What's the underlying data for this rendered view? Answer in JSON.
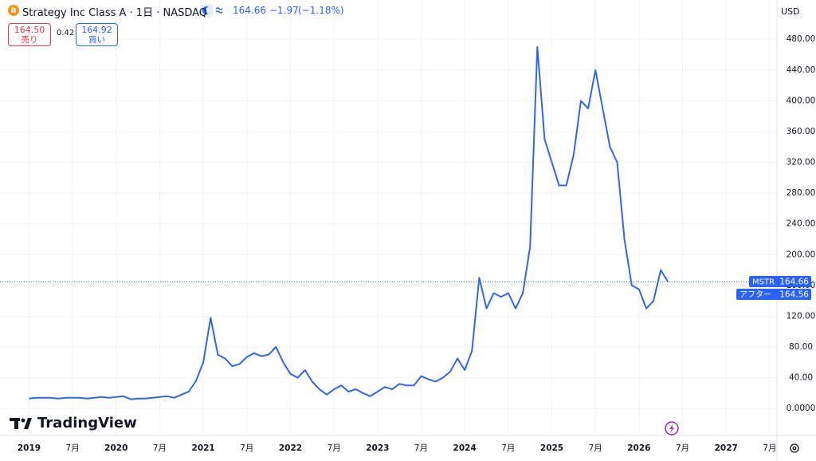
{
  "chart_data": {
    "type": "line",
    "logo_letter": "B",
    "title": "Strategy Inc Class A · 1日 · NASDAQ",
    "quote": {
      "price": "164.66",
      "change": "−1.97",
      "change_pct": "(−1.18%)"
    },
    "sell": {
      "price": "164.50",
      "label": "売り"
    },
    "spread": "0.42",
    "buy": {
      "price": "164.92",
      "label": "買い"
    },
    "currency": "USD",
    "brand": "TradingView",
    "color": "#3366e6",
    "grid": true,
    "x": [
      "2019-01",
      "2019-02",
      "2019-03",
      "2019-04",
      "2019-05",
      "2019-06",
      "2019-07",
      "2019-08",
      "2019-09",
      "2019-10",
      "2019-11",
      "2019-12",
      "2020-01",
      "2020-02",
      "2020-03",
      "2020-04",
      "2020-05",
      "2020-06",
      "2020-07",
      "2020-08",
      "2020-09",
      "2020-10",
      "2020-11",
      "2020-12",
      "2021-01",
      "2021-02",
      "2021-03",
      "2021-04",
      "2021-05",
      "2021-06",
      "2021-07",
      "2021-08",
      "2021-09",
      "2021-10",
      "2021-11",
      "2021-12",
      "2022-01",
      "2022-02",
      "2022-03",
      "2022-04",
      "2022-05",
      "2022-06",
      "2022-07",
      "2022-08",
      "2022-09",
      "2022-10",
      "2022-11",
      "2022-12",
      "2023-01",
      "2023-02",
      "2023-03",
      "2023-04",
      "2023-05",
      "2023-06",
      "2023-07",
      "2023-08",
      "2023-09",
      "2023-10",
      "2023-11",
      "2023-12",
      "2024-01",
      "2024-02",
      "2024-03",
      "2024-04",
      "2024-05",
      "2024-06",
      "2024-07",
      "2024-08",
      "2024-09",
      "2024-10",
      "2024-11",
      "2024-12",
      "2025-01",
      "2025-02",
      "2025-03",
      "2025-04",
      "2025-05",
      "2025-06",
      "2025-07",
      "2025-08",
      "2025-09",
      "2025-10",
      "2025-11",
      "2025-12",
      "2026-01",
      "2026-02",
      "2026-03",
      "2026-04",
      "2026-05"
    ],
    "values": [
      13,
      14,
      14,
      14,
      13,
      14,
      14,
      14,
      13,
      14,
      15,
      14,
      15,
      16,
      12,
      13,
      13,
      14,
      15,
      16,
      14,
      18,
      22,
      36,
      60,
      118,
      70,
      65,
      55,
      58,
      67,
      72,
      68,
      70,
      80,
      60,
      45,
      40,
      50,
      35,
      25,
      18,
      25,
      30,
      22,
      25,
      20,
      16,
      22,
      28,
      25,
      32,
      30,
      30,
      42,
      38,
      35,
      40,
      48,
      65,
      50,
      75,
      170,
      130,
      150,
      145,
      150,
      130,
      150,
      210,
      470,
      350,
      320,
      290,
      290,
      330,
      400,
      390,
      440,
      390,
      340,
      320,
      220,
      160,
      155,
      130,
      140,
      180,
      164.66
    ],
    "xlim": [
      "2018-09",
      "2027-08"
    ],
    "xticks": [
      {
        "value": "2019-01",
        "label": "2019"
      },
      {
        "value": "2019-07",
        "label": "7月"
      },
      {
        "value": "2020-01",
        "label": "2020"
      },
      {
        "value": "2020-07",
        "label": "7月"
      },
      {
        "value": "2021-01",
        "label": "2021"
      },
      {
        "value": "2021-07",
        "label": "7月"
      },
      {
        "value": "2022-01",
        "label": "2022"
      },
      {
        "value": "2022-07",
        "label": "7月"
      },
      {
        "value": "2023-01",
        "label": "2023"
      },
      {
        "value": "2023-07",
        "label": "7月"
      },
      {
        "value": "2024-01",
        "label": "2024"
      },
      {
        "value": "2024-07",
        "label": "7月"
      },
      {
        "value": "2025-01",
        "label": "2025"
      },
      {
        "value": "2025-07",
        "label": "7月"
      },
      {
        "value": "2026-01",
        "label": "2026"
      },
      {
        "value": "2026-07",
        "label": "7月"
      },
      {
        "value": "2027-01",
        "label": "2027"
      },
      {
        "value": "2027-07",
        "label": "7月"
      }
    ],
    "ylim": [
      -34,
      531
    ],
    "yticks": [
      {
        "value": 0,
        "label": "0.0000"
      },
      {
        "value": 40,
        "label": "40.00"
      },
      {
        "value": 80,
        "label": "80.00"
      },
      {
        "value": 120,
        "label": "120.00"
      },
      {
        "value": 160,
        "label": "160.00"
      },
      {
        "value": 200,
        "label": "200.00"
      },
      {
        "value": 240,
        "label": "240.00"
      },
      {
        "value": 280,
        "label": "280.00"
      },
      {
        "value": 320,
        "label": "320.00"
      },
      {
        "value": 360,
        "label": "360.00"
      },
      {
        "value": 400,
        "label": "400.00"
      },
      {
        "value": 440,
        "label": "440.00"
      },
      {
        "value": 480,
        "label": "480.00"
      }
    ],
    "price_labels": [
      {
        "name": "MSTR",
        "value": 164.66
      },
      {
        "name": "アフター",
        "value": 164.56
      }
    ]
  }
}
